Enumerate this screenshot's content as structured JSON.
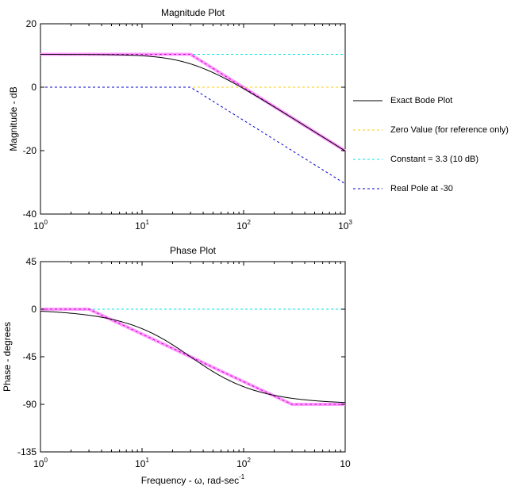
{
  "colors": {
    "exact": "#000000",
    "asymptote_sum": "#ff9cff",
    "sum_dashed": "#cc00cc",
    "zero": "#ffcc00",
    "constant": "#00e5e5",
    "pole": "#0000cc",
    "frame": "#000000"
  },
  "legend": {
    "items": [
      {
        "label": "Exact Bode Plot",
        "color": "#000000",
        "dashed": false
      },
      {
        "label": "Zero Value (for reference only)",
        "color": "#ffcc00",
        "dashed": true
      },
      {
        "label": "Constant = 3.3 (10 dB)",
        "color": "#00e5e5",
        "dashed": true
      },
      {
        "label": "Real Pole at -30",
        "color": "#0000cc",
        "dashed": true
      }
    ]
  },
  "chart_data": [
    {
      "type": "line",
      "title": "Magnitude Plot",
      "ylabel": "Magnitude - dB",
      "xlabel": "",
      "x_scale": "log",
      "xlim": [
        1,
        1000
      ],
      "ylim": [
        -40,
        20
      ],
      "xticks": [
        {
          "base": "10",
          "exp": "0"
        },
        {
          "base": "10",
          "exp": "1"
        },
        {
          "base": "10",
          "exp": "2"
        },
        {
          "base": "10",
          "exp": "3"
        }
      ],
      "yticks": [
        "20",
        "0",
        "-20",
        "-40"
      ],
      "ytick_values": [
        20,
        0,
        -20,
        -40
      ],
      "constant_db": 10.37,
      "pole": 30,
      "series": [
        {
          "name": "Exact Bode Plot",
          "kind": "exact_mag"
        },
        {
          "name": "Zero Value (for reference only)",
          "kind": "zero"
        },
        {
          "name": "Constant = 3.3 (10 dB)",
          "kind": "constant_mag"
        },
        {
          "name": "Real Pole at -30",
          "kind": "pole_mag"
        }
      ]
    },
    {
      "type": "line",
      "title": "Phase Plot",
      "ylabel": "Phase - degrees",
      "xlabel": "Frequency - ω, rad-sec",
      "xlabel_sup": "-1",
      "x_scale": "log",
      "xlim": [
        1,
        1000
      ],
      "ylim": [
        -135,
        45
      ],
      "xticks": [
        {
          "base": "10",
          "exp": "0"
        },
        {
          "base": "10",
          "exp": "1"
        },
        {
          "base": "10",
          "exp": "2"
        },
        {
          "base": "10",
          "exp": ""
        }
      ],
      "yticks": [
        "45",
        "0",
        "-45",
        "-90",
        "-135"
      ],
      "ytick_values": [
        45,
        0,
        -45,
        -90,
        -135
      ],
      "pole": 30,
      "series": [
        {
          "name": "Exact Bode Plot",
          "kind": "exact_phase"
        },
        {
          "name": "Constant = 3.3 (10 dB)",
          "kind": "constant_phase"
        },
        {
          "name": "Real Pole at -30",
          "kind": "pole_phase"
        }
      ]
    }
  ]
}
